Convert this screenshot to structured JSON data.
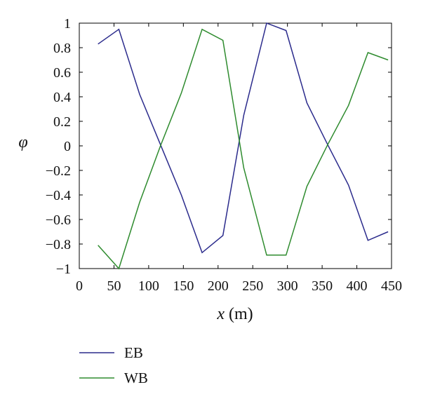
{
  "chart_data": {
    "type": "line",
    "xlabel_var": "x",
    "xlabel_unit": " (m)",
    "ylabel": "φ",
    "xlim": [
      0,
      450
    ],
    "ylim": [
      -1,
      1
    ],
    "xticks": [
      0,
      50,
      100,
      150,
      200,
      250,
      300,
      350,
      400,
      450
    ],
    "yticks": [
      1,
      0.8,
      0.6,
      0.4,
      0.2,
      0,
      -0.2,
      -0.4,
      -0.6,
      -0.8,
      -1
    ],
    "ytick_labels": [
      "1",
      "0.8",
      "0.6",
      "0.4",
      "0.2",
      "0",
      "−0.2",
      "−0.4",
      "−0.6",
      "−0.8",
      "−1"
    ],
    "grid": false,
    "legend_placement": "below",
    "series": [
      {
        "name": "EB",
        "color": "#2b2b8c",
        "x": [
          27,
          57,
          87,
          117,
          147,
          177,
          207,
          237,
          270,
          298,
          328,
          358,
          388,
          416,
          445
        ],
        "y": [
          0.83,
          0.95,
          0.42,
          0.01,
          -0.4,
          -0.87,
          -0.73,
          0.25,
          1.0,
          0.94,
          0.35,
          0.01,
          -0.32,
          -0.77,
          -0.7
        ]
      },
      {
        "name": "WB",
        "color": "#2e8b2e",
        "x": [
          27,
          57,
          87,
          117,
          147,
          177,
          207,
          237,
          270,
          298,
          328,
          358,
          388,
          416,
          445
        ],
        "y": [
          -0.81,
          -1.0,
          -0.46,
          0.0,
          0.43,
          0.95,
          0.86,
          -0.18,
          -0.89,
          -0.89,
          -0.33,
          0.01,
          0.33,
          0.76,
          0.7
        ]
      }
    ]
  }
}
